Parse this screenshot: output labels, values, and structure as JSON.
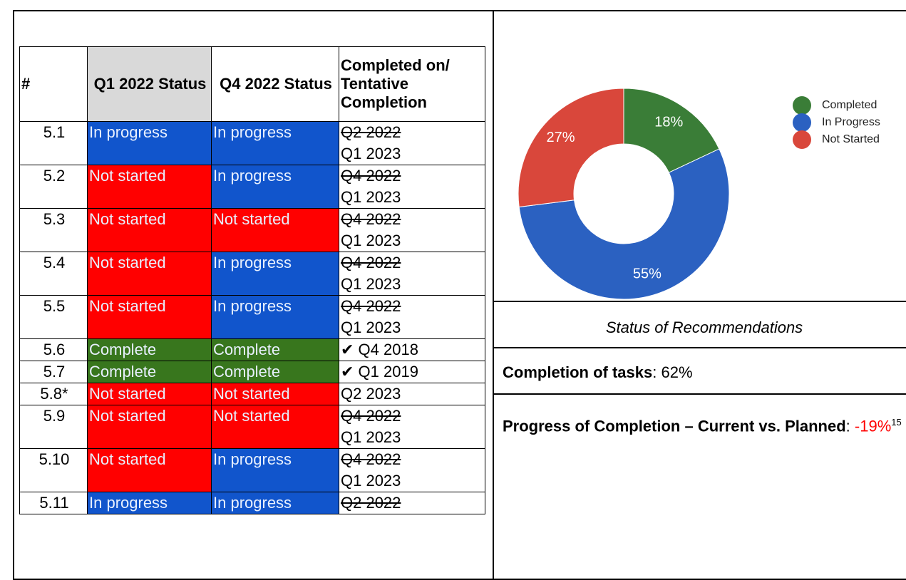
{
  "table": {
    "header": [
      "#",
      "Q1 2022 Status",
      "Q4 2022 Status",
      "Completed on/ Tentative Completion"
    ],
    "status_colors": {
      "In progress": "#1155cc",
      "Not started": "#ff0000",
      "Complete": "#38761d"
    },
    "rows": [
      {
        "num": "5.1",
        "q1": "In progress",
        "q4": "In progress",
        "struck": "Q2 2022",
        "date": "Q1 2023"
      },
      {
        "num": "5.2",
        "q1": "Not started",
        "q4": "In progress",
        "struck": "Q4 2022",
        "date": "Q1 2023"
      },
      {
        "num": "5.3",
        "q1": "Not started",
        "q4": "Not started",
        "struck": "Q4 2022",
        "date": "Q1 2023"
      },
      {
        "num": "5.4",
        "q1": "Not started",
        "q4": "In progress",
        "struck": "Q4 2022",
        "date": "Q1 2023"
      },
      {
        "num": "5.5",
        "q1": "Not started",
        "q4": "In progress",
        "struck": "Q4 2022",
        "date": "Q1 2023"
      },
      {
        "num": "5.6",
        "q1": "Complete",
        "q4": "Complete",
        "date": "✔ Q4 2018"
      },
      {
        "num": "5.7",
        "q1": "Complete",
        "q4": "Complete",
        "date": "✔ Q1 2019"
      },
      {
        "num": "5.8*",
        "q1": "Not started",
        "q4": "Not started",
        "date": "Q2 2023"
      },
      {
        "num": "5.9",
        "q1": "Not started",
        "q4": "Not started",
        "struck": "Q4 2022",
        "date": "Q1 2023"
      },
      {
        "num": "5.10",
        "q1": "Not started",
        "q4": "In progress",
        "struck": "Q4 2022",
        "date": "Q1 2023"
      },
      {
        "num": "5.11",
        "q1": "In progress",
        "q4": "In progress",
        "struck": "Q2 2022"
      }
    ]
  },
  "chart": {
    "type": "donut",
    "categories": [
      "Completed",
      "In Progress",
      "Not Started"
    ],
    "values": [
      18,
      55,
      27
    ],
    "value_labels": [
      "18%",
      "55%",
      "27%"
    ],
    "colors": [
      "#3a7d37",
      "#2b61c1",
      "#d9473b"
    ]
  },
  "caption": "Status of Recommendations",
  "completion": {
    "label": "Completion of tasks",
    "separator": ": ",
    "value": "62%"
  },
  "progress": {
    "label": "Progress of Completion – Current vs. Planned",
    "separator": ": ",
    "value": "-19%",
    "footnote": "15"
  }
}
